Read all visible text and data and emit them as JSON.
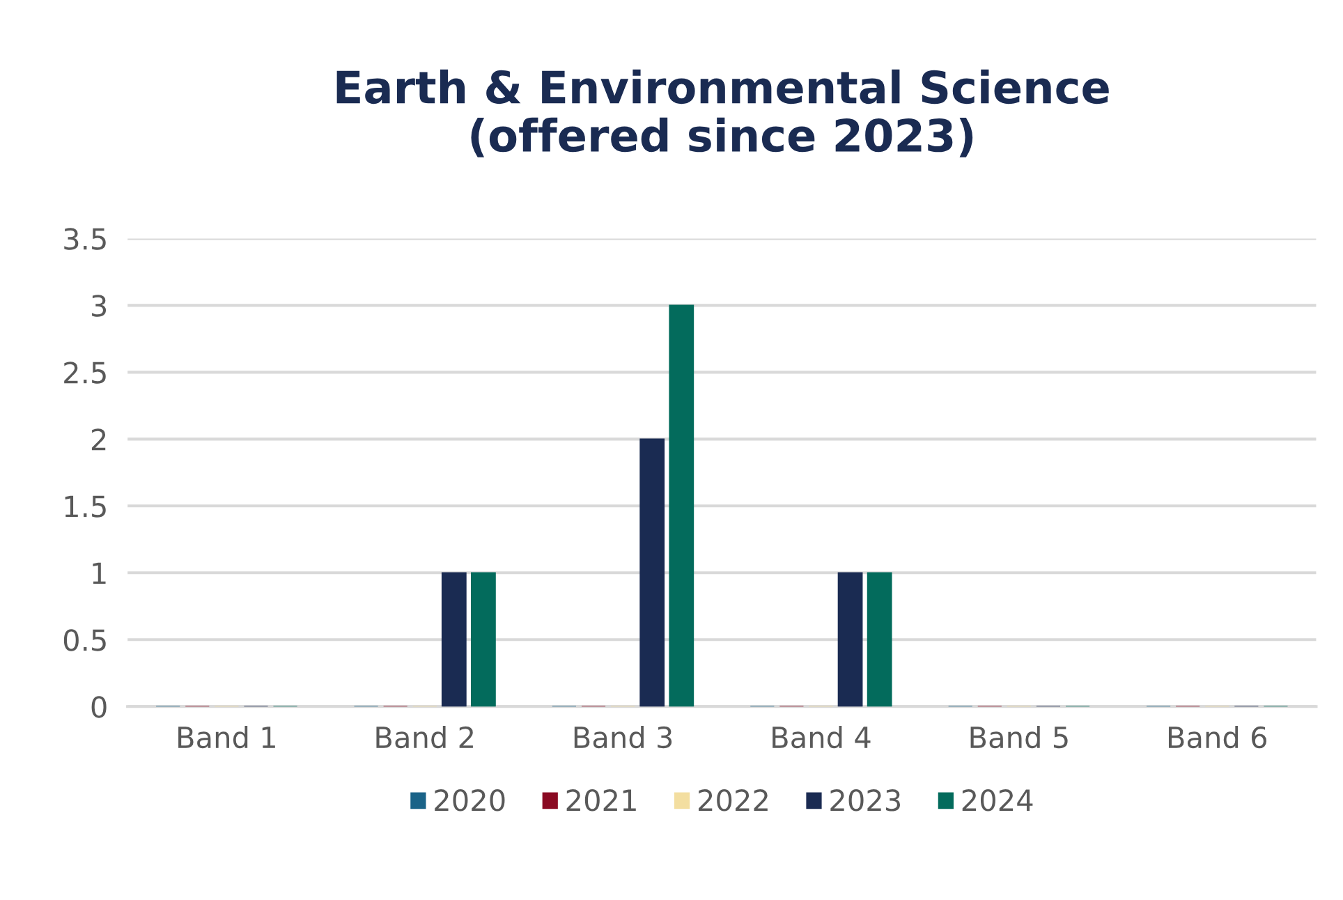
{
  "chart_data": {
    "type": "bar",
    "title": "Earth & Environmental Science\n(offered since 2023)",
    "categories": [
      "Band 1",
      "Band 2",
      "Band 3",
      "Band 4",
      "Band 5",
      "Band 6"
    ],
    "series": [
      {
        "name": "2020",
        "color": "#1a6388",
        "values": [
          0,
          0,
          0,
          0,
          0,
          0
        ]
      },
      {
        "name": "2021",
        "color": "#8a0a22",
        "values": [
          0,
          0,
          0,
          0,
          0,
          0
        ]
      },
      {
        "name": "2022",
        "color": "#f3dea0",
        "values": [
          0,
          0,
          0,
          0,
          0,
          0
        ]
      },
      {
        "name": "2023",
        "color": "#1a2b52",
        "values": [
          0,
          1,
          2,
          1,
          0,
          0
        ]
      },
      {
        "name": "2024",
        "color": "#036b5c",
        "values": [
          0,
          1,
          3,
          1,
          0,
          0
        ]
      }
    ],
    "ylim": [
      0,
      3.5
    ],
    "yticks": [
      0,
      0.5,
      1,
      1.5,
      2,
      2.5,
      3,
      3.5
    ],
    "grid": "y",
    "legend": "bottom"
  }
}
